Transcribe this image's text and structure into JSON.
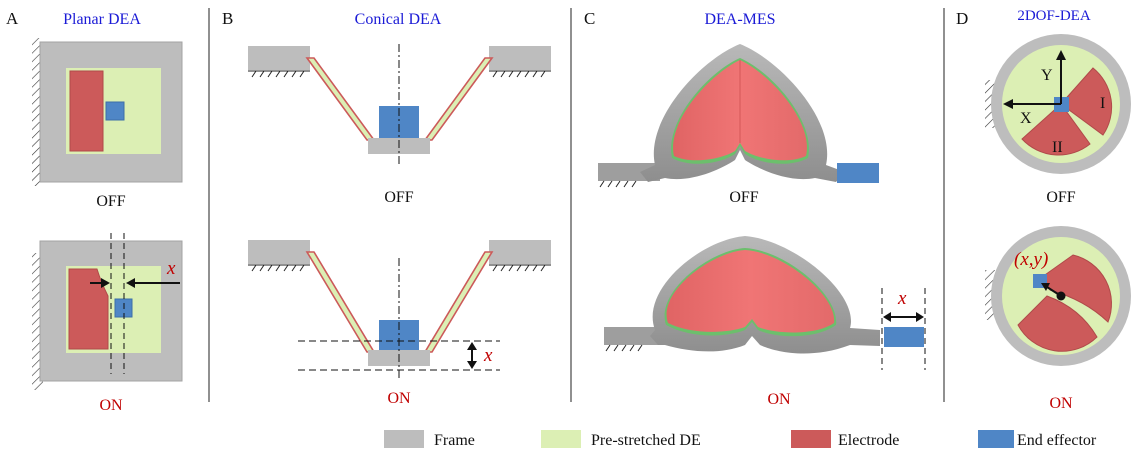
{
  "panels": {
    "a": {
      "letter": "A",
      "title": "Planar DEA",
      "off": "OFF",
      "on": "ON",
      "disp": "x"
    },
    "b": {
      "letter": "B",
      "title": "Conical DEA",
      "off": "OFF",
      "on": "ON",
      "disp": "x"
    },
    "c": {
      "letter": "C",
      "title": "DEA-MES",
      "off": "OFF",
      "on": "ON",
      "disp": "x"
    },
    "d": {
      "letter": "D",
      "title": "2DOF-DEA",
      "off": "OFF",
      "on": "ON",
      "axis_x": "X",
      "axis_y": "Y",
      "region1": "I",
      "region2": "II",
      "coord": "(x,y)"
    }
  },
  "legend": [
    {
      "label": "Frame",
      "color": "#bdbdbd"
    },
    {
      "label": "Pre-stretched DE",
      "color": "#dcefb4"
    },
    {
      "label": "Electrode",
      "color": "#cc5a5a"
    },
    {
      "label": "End effector",
      "color": "#4f86c6"
    }
  ],
  "colors": {
    "frame": "#bdbdbd",
    "frame_dark": "#a3a3a3",
    "membrane": "#dcefb4",
    "electrode": "#cc5a5a",
    "effector": "#4f86c6",
    "title": "#1a1ad6",
    "on": "#c00000"
  }
}
